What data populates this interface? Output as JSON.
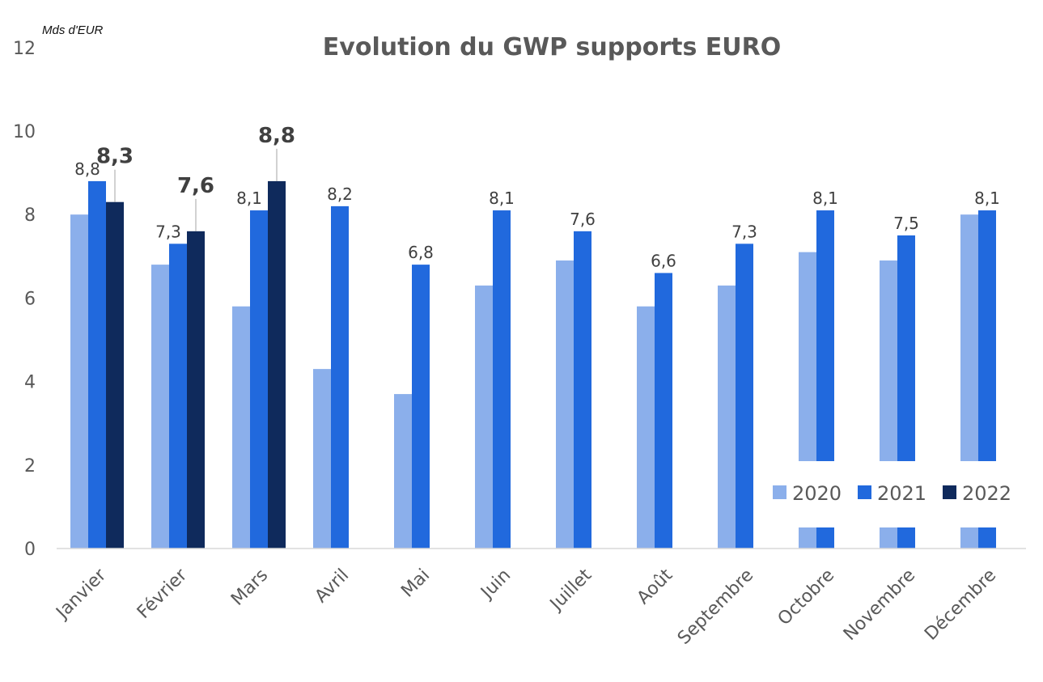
{
  "chart_data": {
    "type": "bar",
    "title": "Evolution du GWP supports EURO",
    "unit_label": "Mds d'EUR",
    "xlabel": "",
    "ylabel": "Mds d'EUR",
    "ylim": [
      0,
      12
    ],
    "yticks": [
      0,
      2,
      4,
      6,
      8,
      10,
      12
    ],
    "ytick_labels": [
      "0",
      "2",
      "4",
      "6",
      "8",
      "10",
      "12"
    ],
    "grid": false,
    "legend_position": "bottom-right (inside plot)",
    "categories": [
      "Janvier",
      "Février",
      "Mars",
      "Avril",
      "Mai",
      "Juin",
      "Juillet",
      "Août",
      "Septembre",
      "Octobre",
      "Novembre",
      "Décembre"
    ],
    "series": [
      {
        "name": "2020",
        "color": "#8BAFEB",
        "values": [
          8.0,
          6.8,
          5.8,
          4.3,
          3.7,
          6.3,
          6.9,
          5.8,
          6.3,
          7.1,
          6.9,
          8.0
        ],
        "labels": [
          "",
          "",
          "",
          "",
          "",
          "",
          "",
          "",
          "",
          "",
          "",
          ""
        ]
      },
      {
        "name": "2021",
        "color": "#2169DD",
        "values": [
          8.8,
          7.3,
          8.1,
          8.2,
          6.8,
          8.1,
          7.6,
          6.6,
          7.3,
          8.1,
          7.5,
          8.1
        ],
        "labels": [
          "8,8",
          "7,3",
          "8,1",
          "8,2",
          "6,8",
          "8,1",
          "7,6",
          "6,6",
          "7,3",
          "8,1",
          "7,5",
          "8,1"
        ]
      },
      {
        "name": "2022",
        "color": "#0F2A5C",
        "values": [
          8.3,
          7.6,
          8.8,
          null,
          null,
          null,
          null,
          null,
          null,
          null,
          null,
          null
        ],
        "labels": [
          "8,3",
          "7,6",
          "8,8",
          "",
          "",
          "",
          "",
          "",
          "",
          "",
          "",
          ""
        ]
      }
    ],
    "legend": [
      "2020",
      "2021",
      "2022"
    ]
  }
}
